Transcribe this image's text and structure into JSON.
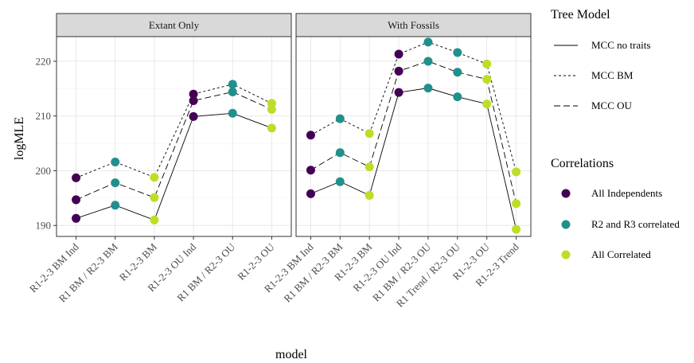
{
  "chart_data": {
    "type": "line",
    "ylabel": "logMLE",
    "xlabel": "model",
    "ylim": [
      188,
      224.5
    ],
    "yticks": [
      190,
      200,
      210,
      220
    ],
    "grid": true,
    "legend_position": "right",
    "legends": {
      "linetype": {
        "title": "Tree Model",
        "entries": [
          {
            "label": "MCC no traits",
            "dash": "solid"
          },
          {
            "label": "MCC BM",
            "dash": "dotted"
          },
          {
            "label": "MCC OU",
            "dash": "dashed"
          }
        ]
      },
      "color": {
        "title": "Correlations",
        "entries": [
          {
            "label": "All Independents",
            "color": "#440154"
          },
          {
            "label": "R2 and R3 correlated",
            "color": "#21908C"
          },
          {
            "label": "All Correlated",
            "color": "#BBDF27"
          }
        ]
      }
    },
    "panels": [
      {
        "strip": "Extant Only",
        "categories": [
          "R1-2-3 BM Ind",
          "R1 BM / R2-3 BM",
          "R1-2-3 BM",
          "R1-2-3 OU Ind",
          "R1 BM / R2-3 OU",
          "R1-2-3 OU"
        ],
        "point_colors": [
          "#440154",
          "#21908C",
          "#BBDF27",
          "#440154",
          "#21908C",
          "#BBDF27"
        ],
        "series": [
          {
            "tree_model": "MCC no traits",
            "dash": "solid",
            "values": [
              191.3,
              193.7,
              191.0,
              209.9,
              210.5,
              207.8
            ]
          },
          {
            "tree_model": "MCC BM",
            "dash": "dotted",
            "values": [
              198.7,
              201.6,
              198.8,
              214.0,
              215.8,
              212.3
            ]
          },
          {
            "tree_model": "MCC OU",
            "dash": "dashed",
            "values": [
              194.7,
              197.8,
              195.1,
              212.8,
              214.4,
              211.2
            ]
          }
        ]
      },
      {
        "strip": "With Fossils",
        "categories": [
          "R1-2-3 BM Ind",
          "R1 BM / R2-3 BM",
          "R1-2-3 BM",
          "R1-2-3 OU Ind",
          "R1 BM / R2-3 OU",
          "R1 Trend / R2-3 OU",
          "R1-2-3 OU",
          "R1-2-3 Trend"
        ],
        "point_colors": [
          "#440154",
          "#21908C",
          "#BBDF27",
          "#440154",
          "#21908C",
          "#21908C",
          "#BBDF27",
          "#BBDF27"
        ],
        "series": [
          {
            "tree_model": "MCC no traits",
            "dash": "solid",
            "values": [
              195.8,
              198.0,
              195.5,
              214.3,
              215.1,
              213.5,
              212.2,
              189.3
            ]
          },
          {
            "tree_model": "MCC BM",
            "dash": "dotted",
            "values": [
              206.5,
              209.5,
              206.8,
              221.3,
              223.5,
              221.6,
              219.5,
              199.8
            ]
          },
          {
            "tree_model": "MCC OU",
            "dash": "dashed",
            "values": [
              200.1,
              203.3,
              200.7,
              218.2,
              220.0,
              218.0,
              216.7,
              194.0
            ]
          }
        ]
      }
    ]
  }
}
